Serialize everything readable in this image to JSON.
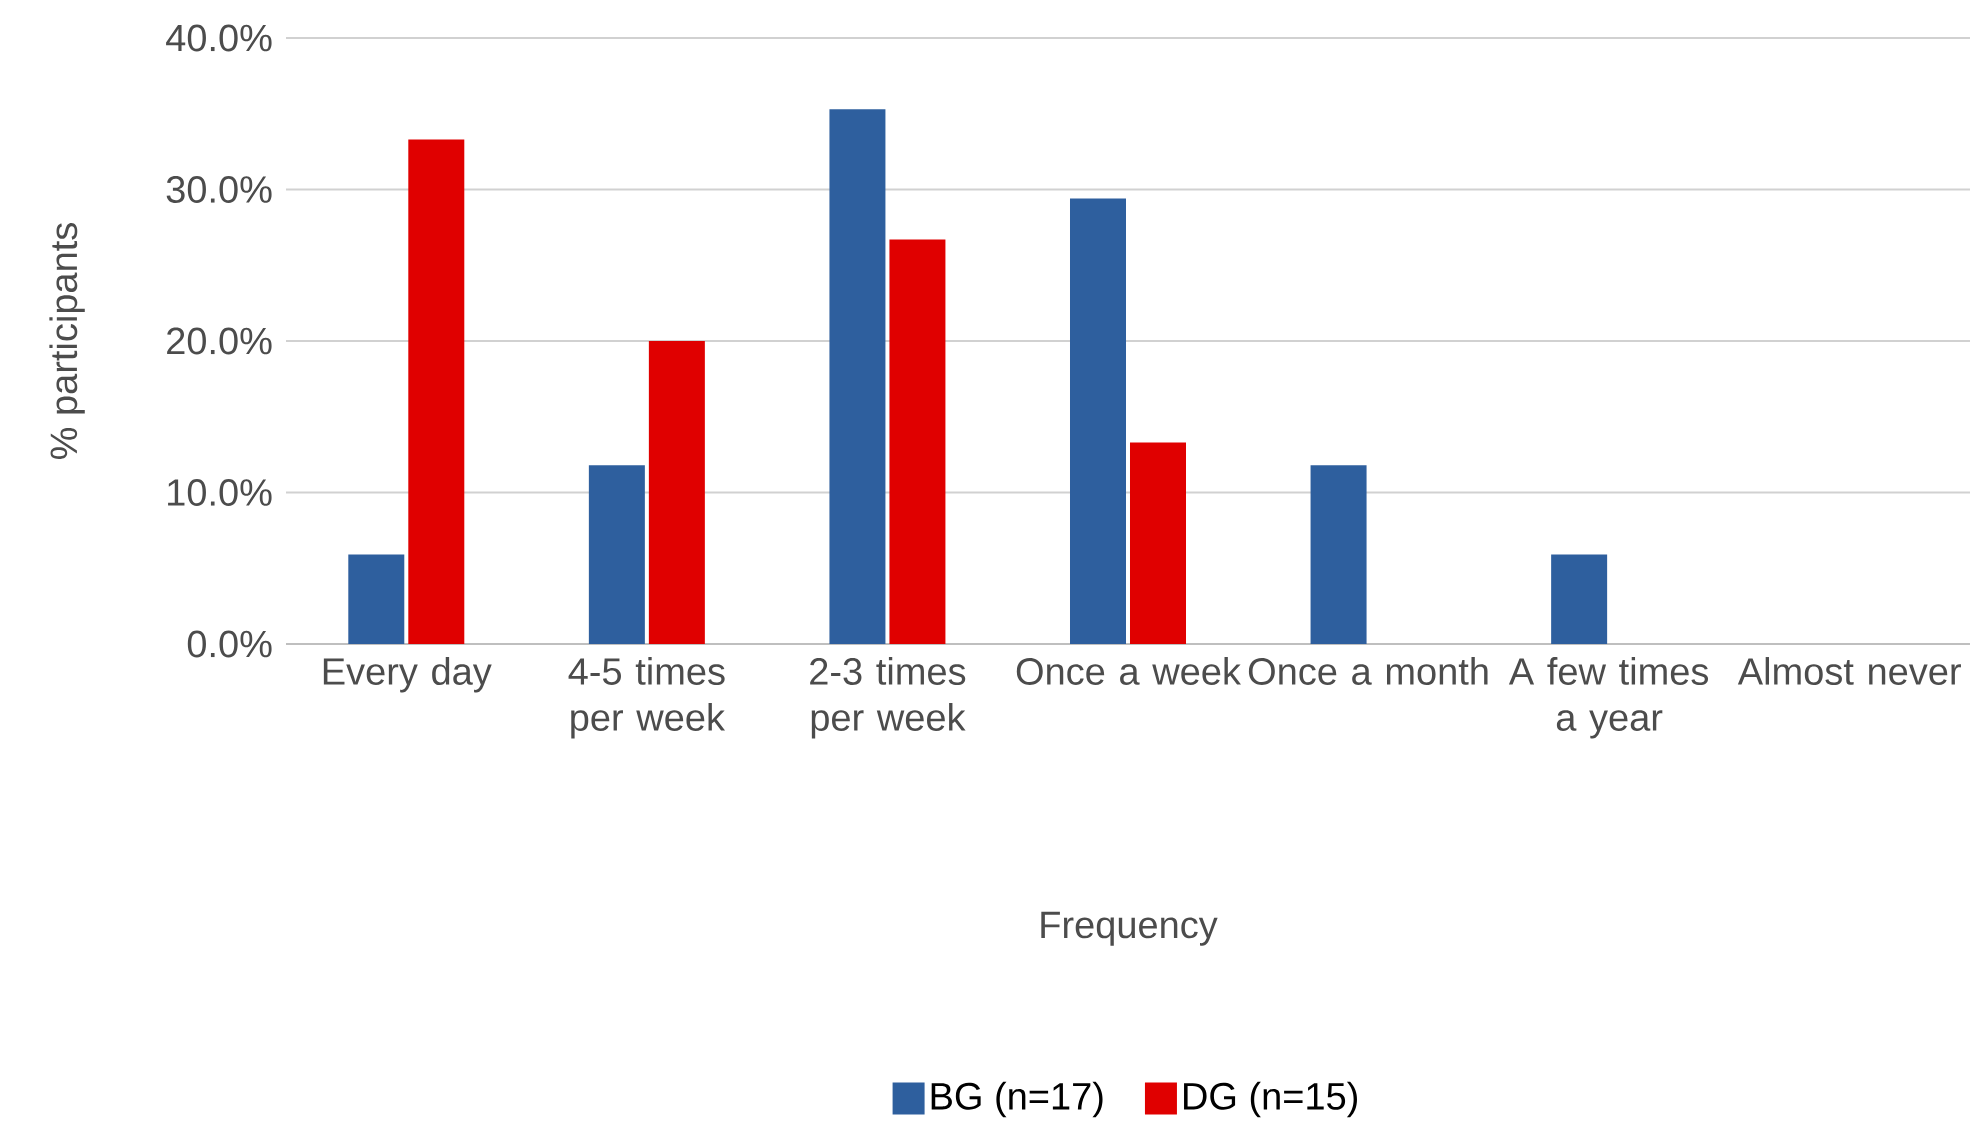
{
  "chart_data": {
    "type": "bar",
    "xlabel": "Frequency",
    "ylabel": "% participants",
    "categories": [
      "Every day",
      "4-5 times per week",
      "2-3 times per week",
      "Once a week",
      "Once a month",
      "A few times a year",
      "Almost never"
    ],
    "series": [
      {
        "name": "BG (n=17)",
        "color": "#2e5f9e",
        "values": [
          5.9,
          11.8,
          35.3,
          29.4,
          11.8,
          5.9,
          0
        ]
      },
      {
        "name": "DG (n=15)",
        "color": "#e00000",
        "values": [
          33.3,
          20.0,
          26.7,
          13.3,
          0,
          0,
          0
        ]
      }
    ],
    "ylim": [
      0,
      40
    ],
    "yticks": [
      {
        "value": 0,
        "label": "0.0%"
      },
      {
        "value": 10,
        "label": "10.0%"
      },
      {
        "value": 20,
        "label": "20.0%"
      },
      {
        "value": 30,
        "label": "30.0%"
      },
      {
        "value": 40,
        "label": "40.0%"
      }
    ],
    "grid": "y",
    "legend": "bottom"
  }
}
